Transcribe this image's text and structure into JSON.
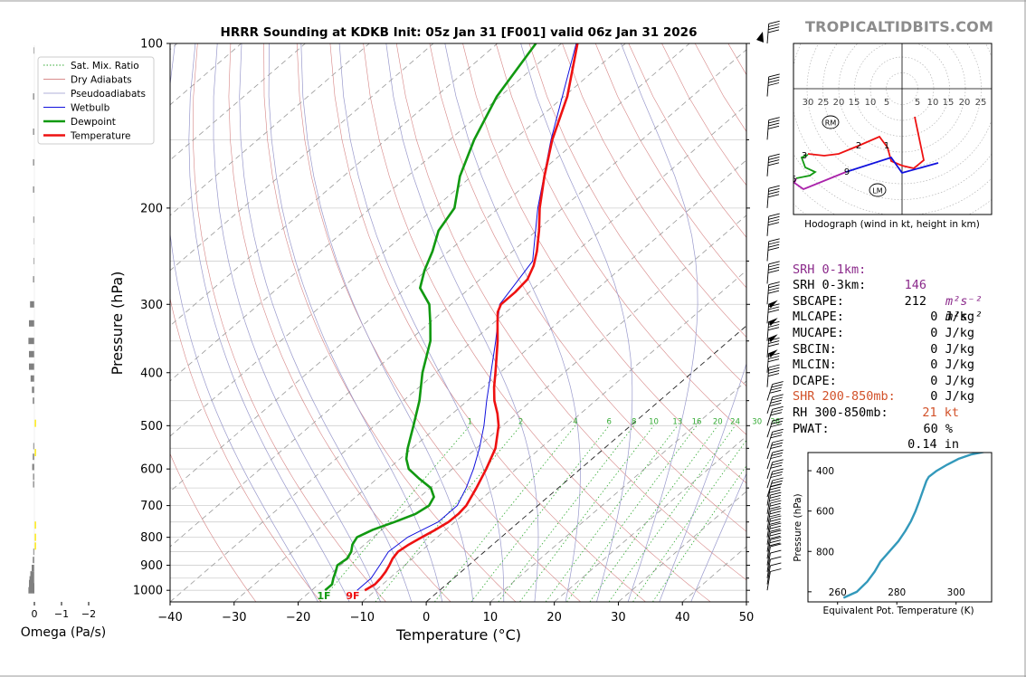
{
  "brand": "TROPICALTIDBITS.COM",
  "colors": {
    "temperature": "#ee1111",
    "dewpoint": "#119911",
    "wetbulb": "#1111dd",
    "dry_adiabat": "#cc6666",
    "pseudoadiabat": "#9999cc",
    "mixing_ratio": "#33aa33",
    "isotherm": "#888888",
    "omega_bar": "#808080",
    "omega_dgz": "#ffee33",
    "theta_e": "#3399bb",
    "hodo_0_1": "#ee1111",
    "hodo_1_3": "#1111dd",
    "hodo_3_6": "#119911",
    "hodo_6_9": "#aa22aa",
    "srh01_text": "#8b2a8b",
    "shear_text": "#d2522a"
  },
  "omega_panel": {
    "xlabel": "Omega (Pa/s)",
    "ticks": [
      "0",
      "−1",
      "−2"
    ],
    "bars": [
      {
        "p": 1000,
        "w": 0.22
      },
      {
        "p": 985,
        "w": 0.2
      },
      {
        "p": 970,
        "w": 0.2
      },
      {
        "p": 955,
        "w": 0.18
      },
      {
        "p": 935,
        "w": 0.15
      },
      {
        "p": 910,
        "w": 0.1
      },
      {
        "p": 880,
        "w": 0.06
      },
      {
        "p": 850,
        "w": 0.04
      },
      {
        "p": 640,
        "w": 0.05
      },
      {
        "p": 620,
        "w": 0.05
      },
      {
        "p": 595,
        "w": 0.08
      },
      {
        "p": 570,
        "w": 0.06
      },
      {
        "p": 545,
        "w": 0.04
      },
      {
        "p": 450,
        "w": 0.06
      },
      {
        "p": 430,
        "w": 0.09
      },
      {
        "p": 410,
        "w": 0.14
      },
      {
        "p": 390,
        "w": 0.2
      },
      {
        "p": 370,
        "w": 0.2
      },
      {
        "p": 350,
        "w": 0.22
      },
      {
        "p": 325,
        "w": 0.2
      },
      {
        "p": 300,
        "w": 0.16
      },
      {
        "p": 270,
        "w": 0.05
      },
      {
        "p": 250,
        "w": 0.03
      },
      {
        "p": 230,
        "w": 0.02
      },
      {
        "p": 210,
        "w": 0.04
      },
      {
        "p": 185,
        "w": 0.05
      },
      {
        "p": 165,
        "w": 0.05
      },
      {
        "p": 145,
        "w": 0.05
      },
      {
        "p": 125,
        "w": 0.05
      },
      {
        "p": 103,
        "w": 0.03
      }
    ],
    "dgz_p": [
      495,
      560,
      760,
      800,
      830
    ]
  },
  "skewt": {
    "title": "HRRR Sounding at KDKB Init: 05z Jan 31 [F001] valid 06z Jan 31 2026",
    "ylabel": "Pressure (hPa)",
    "xlabel": "Temperature (°C)",
    "xlim": [
      -40,
      50
    ],
    "plim": [
      1050,
      100
    ],
    "xticks": [
      "−40",
      "−30",
      "−20",
      "−10",
      "0",
      "10",
      "20",
      "30",
      "40",
      "50"
    ],
    "pticks": [
      "100",
      "200",
      "300",
      "400",
      "500",
      "600",
      "700",
      "800",
      "900",
      "1000"
    ],
    "legend": [
      {
        "label": "Sat. Mix. Ratio"
      },
      {
        "label": "Dry Adiabats"
      },
      {
        "label": "Pseudoadiabats"
      },
      {
        "label": "Wetbulb"
      },
      {
        "label": "Dewpoint"
      },
      {
        "label": "Temperature"
      }
    ],
    "mixing_ratio_labels": [
      "1",
      "2",
      "4",
      "6",
      "8",
      "10",
      "13",
      "16",
      "20",
      "24",
      "30",
      "36"
    ],
    "surface_labels": {
      "dewpoint": "1F",
      "temperature": "9F"
    },
    "temperature": [
      {
        "p": 1000,
        "t": -11.7
      },
      {
        "p": 975,
        "t": -11.2
      },
      {
        "p": 950,
        "t": -11.4
      },
      {
        "p": 925,
        "t": -11.8
      },
      {
        "p": 900,
        "t": -12.4
      },
      {
        "p": 875,
        "t": -13.1
      },
      {
        "p": 850,
        "t": -13.5
      },
      {
        "p": 825,
        "t": -13.1
      },
      {
        "p": 800,
        "t": -12.4
      },
      {
        "p": 775,
        "t": -11.6
      },
      {
        "p": 750,
        "t": -11.0
      },
      {
        "p": 725,
        "t": -10.9
      },
      {
        "p": 700,
        "t": -11.2
      },
      {
        "p": 650,
        "t": -12.8
      },
      {
        "p": 600,
        "t": -14.7
      },
      {
        "p": 550,
        "t": -17.0
      },
      {
        "p": 500,
        "t": -20.6
      },
      {
        "p": 475,
        "t": -23.0
      },
      {
        "p": 450,
        "t": -25.8
      },
      {
        "p": 425,
        "t": -28.3
      },
      {
        "p": 400,
        "t": -30.7
      },
      {
        "p": 375,
        "t": -33.3
      },
      {
        "p": 350,
        "t": -36.1
      },
      {
        "p": 325,
        "t": -39.3
      },
      {
        "p": 310,
        "t": -41.3
      },
      {
        "p": 300,
        "t": -42.2
      },
      {
        "p": 285,
        "t": -42.2
      },
      {
        "p": 270,
        "t": -42.6
      },
      {
        "p": 255,
        "t": -44.1
      },
      {
        "p": 240,
        "t": -46.2
      },
      {
        "p": 220,
        "t": -49.6
      },
      {
        "p": 200,
        "t": -53.6
      },
      {
        "p": 175,
        "t": -58.6
      },
      {
        "p": 150,
        "t": -64.0
      },
      {
        "p": 125,
        "t": -69.5
      },
      {
        "p": 100,
        "t": -77.5
      }
    ],
    "dewpoint": [
      {
        "p": 1000,
        "t": -17.9
      },
      {
        "p": 975,
        "t": -17.9
      },
      {
        "p": 950,
        "t": -18.8
      },
      {
        "p": 925,
        "t": -19.6
      },
      {
        "p": 900,
        "t": -20.5
      },
      {
        "p": 875,
        "t": -20.2
      },
      {
        "p": 850,
        "t": -20.8
      },
      {
        "p": 825,
        "t": -21.9
      },
      {
        "p": 800,
        "t": -22.5
      },
      {
        "p": 775,
        "t": -21.4
      },
      {
        "p": 750,
        "t": -19.4
      },
      {
        "p": 725,
        "t": -17.6
      },
      {
        "p": 700,
        "t": -17.0
      },
      {
        "p": 675,
        "t": -17.8
      },
      {
        "p": 650,
        "t": -19.9
      },
      {
        "p": 625,
        "t": -23.4
      },
      {
        "p": 600,
        "t": -26.8
      },
      {
        "p": 575,
        "t": -29.0
      },
      {
        "p": 550,
        "t": -30.7
      },
      {
        "p": 500,
        "t": -33.9
      },
      {
        "p": 450,
        "t": -37.5
      },
      {
        "p": 400,
        "t": -42.1
      },
      {
        "p": 350,
        "t": -46.6
      },
      {
        "p": 325,
        "t": -49.8
      },
      {
        "p": 300,
        "t": -53.4
      },
      {
        "p": 280,
        "t": -57.8
      },
      {
        "p": 260,
        "t": -60.3
      },
      {
        "p": 240,
        "t": -62.5
      },
      {
        "p": 220,
        "t": -65.3
      },
      {
        "p": 200,
        "t": -66.9
      },
      {
        "p": 175,
        "t": -71.8
      },
      {
        "p": 150,
        "t": -76.2
      },
      {
        "p": 125,
        "t": -80.5
      },
      {
        "p": 100,
        "t": -84.0
      }
    ],
    "wetbulb": [
      {
        "p": 1000,
        "t": -12.9
      },
      {
        "p": 950,
        "t": -12.9
      },
      {
        "p": 900,
        "t": -13.9
      },
      {
        "p": 850,
        "t": -15.0
      },
      {
        "p": 800,
        "t": -14.6
      },
      {
        "p": 750,
        "t": -12.6
      },
      {
        "p": 700,
        "t": -12.6
      },
      {
        "p": 650,
        "t": -14.4
      },
      {
        "p": 600,
        "t": -16.7
      },
      {
        "p": 550,
        "t": -19.5
      },
      {
        "p": 500,
        "t": -22.9
      },
      {
        "p": 450,
        "t": -27.0
      },
      {
        "p": 400,
        "t": -31.4
      },
      {
        "p": 350,
        "t": -36.4
      },
      {
        "p": 300,
        "t": -42.4
      },
      {
        "p": 250,
        "t": -45.1
      },
      {
        "p": 200,
        "t": -53.9
      },
      {
        "p": 150,
        "t": -64.2
      },
      {
        "p": 100,
        "t": -77.7
      }
    ],
    "wind_barb_p": [
      1000,
      975,
      950,
      925,
      900,
      875,
      850,
      825,
      800,
      775,
      750,
      725,
      700,
      675,
      650,
      625,
      600,
      575,
      550,
      525,
      500,
      475,
      450,
      425,
      400,
      375,
      350,
      325,
      300,
      275,
      250,
      225,
      200,
      175,
      150,
      125,
      100
    ]
  },
  "hodograph": {
    "caption": "Hodograph (wind in kt, height in km)",
    "ring_labels": [
      "30",
      "25",
      "20",
      "15",
      "10",
      "5",
      "5",
      "10",
      "15",
      "20",
      "25"
    ],
    "height_labels": [
      "1",
      "2",
      "3",
      "6",
      "9"
    ],
    "storm_motion": [
      "RM",
      "LM"
    ]
  },
  "stats": [
    {
      "label": "SRH 0-1km:",
      "value": "146",
      "unit": "m²s⁻²",
      "tone": "purple"
    },
    {
      "label": "SRH 0-3km:",
      "value": "212",
      "unit": "m²s⁻²",
      "tone": "black"
    },
    {
      "label": "SBCAPE:",
      "value": "0 J/kg",
      "tone": "black"
    },
    {
      "label": "MLCAPE:",
      "value": "0 J/kg",
      "tone": "black"
    },
    {
      "label": "MUCAPE:",
      "value": "0 J/kg",
      "tone": "black"
    },
    {
      "label": "SBCIN:",
      "value": "0 J/kg",
      "tone": "black"
    },
    {
      "label": "MLCIN:",
      "value": "0 J/kg",
      "tone": "black"
    },
    {
      "label": "DCAPE:",
      "value": "0 J/kg",
      "tone": "black"
    },
    {
      "label": "SHR 200-850mb:",
      "value": "21 kt",
      "tone": "orange"
    },
    {
      "label": "RH 300-850mb:",
      "value": "60 %",
      "tone": "black"
    },
    {
      "label": "PWAT:",
      "value": "0.14 in",
      "tone": "black"
    }
  ],
  "theta_e_panel": {
    "ylabel": "Pressure (hPa)",
    "xlabel": "Equivalent Pot. Temperature (K)",
    "xticks": [
      "260",
      "280",
      "300"
    ],
    "yticks": [
      "400",
      "600",
      "800"
    ],
    "profile": [
      {
        "p": 1030,
        "t": 262
      },
      {
        "p": 1000,
        "t": 266.5
      },
      {
        "p": 950,
        "t": 270
      },
      {
        "p": 900,
        "t": 272.5
      },
      {
        "p": 850,
        "t": 274.5
      },
      {
        "p": 800,
        "t": 277.5
      },
      {
        "p": 750,
        "t": 280.5
      },
      {
        "p": 700,
        "t": 282.8
      },
      {
        "p": 650,
        "t": 284.8
      },
      {
        "p": 600,
        "t": 286.3
      },
      {
        "p": 550,
        "t": 287.6
      },
      {
        "p": 500,
        "t": 288.8
      },
      {
        "p": 450,
        "t": 290
      },
      {
        "p": 430,
        "t": 290.8
      },
      {
        "p": 400,
        "t": 293.5
      },
      {
        "p": 370,
        "t": 297
      },
      {
        "p": 340,
        "t": 301
      },
      {
        "p": 320,
        "t": 305
      },
      {
        "p": 305,
        "t": 310
      }
    ]
  }
}
